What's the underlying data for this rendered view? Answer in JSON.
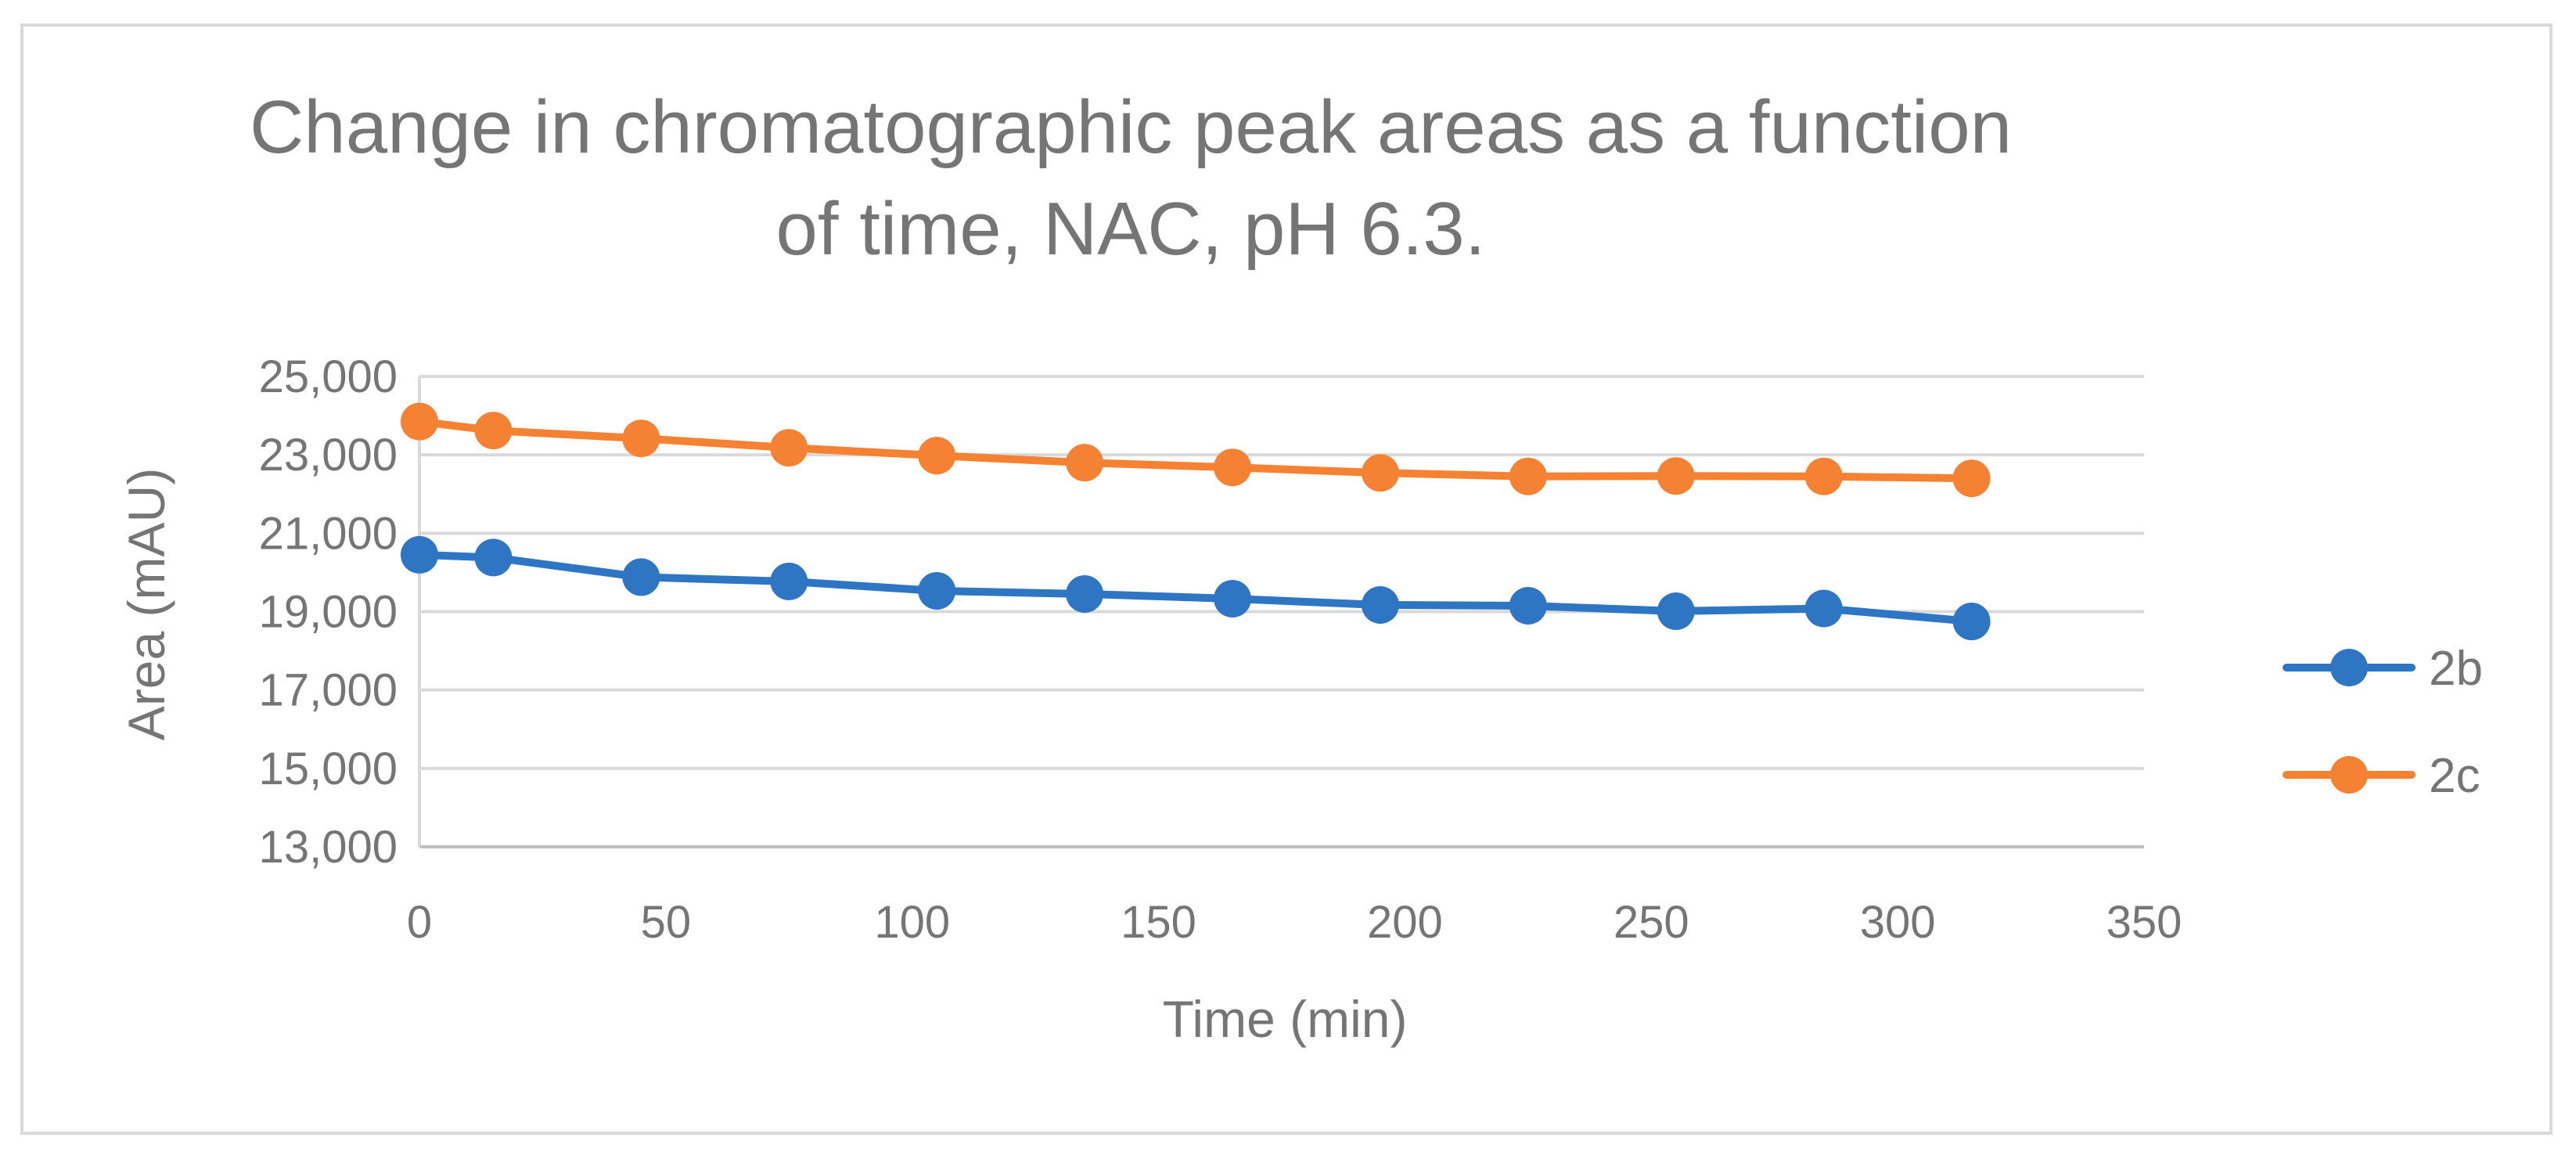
{
  "chart_data": {
    "type": "line",
    "title": "Change in chromatographic peak areas as a function\nof time, NAC, pH 6.3.",
    "xlabel": "Time (min)",
    "ylabel": "Area (mAU)",
    "xlim": [
      0,
      350
    ],
    "ylim": [
      13000,
      25000
    ],
    "xticks": [
      0,
      50,
      100,
      150,
      200,
      250,
      300,
      350
    ],
    "yticks": [
      13000,
      15000,
      17000,
      19000,
      21000,
      23000,
      25000
    ],
    "xtick_labels": [
      "0",
      "50",
      "100",
      "150",
      "200",
      "250",
      "300",
      "350"
    ],
    "ytick_labels": [
      "13,000",
      "15,000",
      "17,000",
      "19,000",
      "21,000",
      "23,000",
      "25,000"
    ],
    "x": [
      0,
      15,
      45,
      75,
      105,
      135,
      165,
      195,
      225,
      255,
      285,
      315
    ],
    "grid": "horizontal",
    "legend_position": "right",
    "series": [
      {
        "name": "2b",
        "color": "#2e75c4",
        "values": [
          20450,
          20380,
          19880,
          19770,
          19530,
          19450,
          19330,
          19170,
          19150,
          19010,
          19080,
          18750
        ]
      },
      {
        "name": "2c",
        "color": "#f58233",
        "values": [
          23850,
          23620,
          23420,
          23180,
          22980,
          22800,
          22680,
          22540,
          22450,
          22460,
          22450,
          22400
        ]
      }
    ]
  }
}
